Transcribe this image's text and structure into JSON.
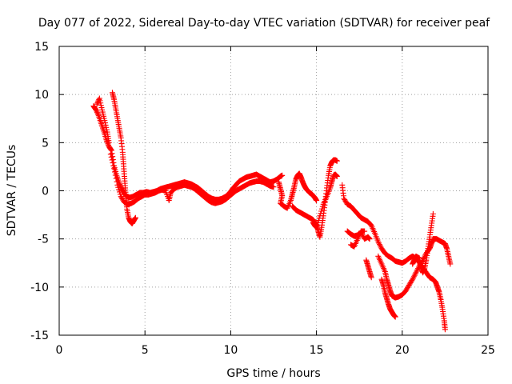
{
  "chart_data": {
    "type": "scatter",
    "title": "Day 077 of 2022, Sidereal Day-to-day VTEC variation (SDTVAR) for receiver peaf",
    "xlabel": "GPS time / hours",
    "ylabel": "SDTVAR / TECUs",
    "xlim": [
      0,
      25
    ],
    "ylim": [
      -15,
      15
    ],
    "xticks": [
      0,
      5,
      10,
      15,
      20,
      25
    ],
    "yticks": [
      -15,
      -10,
      -5,
      0,
      5,
      10,
      15
    ],
    "grid": true,
    "marker": "+",
    "color": "#ff0000",
    "series": [
      {
        "name": "track-1",
        "points": [
          [
            2.0,
            8.8
          ],
          [
            2.15,
            8.4
          ],
          [
            2.3,
            7.8
          ],
          [
            2.45,
            7.0
          ],
          [
            2.6,
            6.2
          ],
          [
            2.75,
            5.3
          ],
          [
            2.9,
            4.6
          ],
          [
            3.05,
            4.2
          ],
          [
            3.2,
            2.6
          ],
          [
            3.35,
            1.6
          ],
          [
            3.5,
            0.8
          ],
          [
            3.65,
            0.2
          ],
          [
            3.8,
            -0.3
          ],
          [
            3.95,
            -0.6
          ],
          [
            4.1,
            -0.7
          ],
          [
            4.3,
            -0.6
          ],
          [
            4.5,
            -0.4
          ],
          [
            4.7,
            -0.2
          ],
          [
            4.9,
            -0.2
          ],
          [
            5.1,
            -0.1
          ],
          [
            5.3,
            -0.2
          ],
          [
            5.5,
            -0.1
          ],
          [
            5.7,
            0.0
          ],
          [
            5.9,
            0.2
          ],
          [
            6.1,
            0.3
          ],
          [
            6.3,
            0.4
          ],
          [
            6.5,
            0.5
          ],
          [
            6.7,
            0.6
          ],
          [
            6.9,
            0.7
          ],
          [
            7.1,
            0.8
          ],
          [
            7.3,
            0.9
          ],
          [
            7.5,
            0.8
          ],
          [
            7.7,
            0.7
          ],
          [
            7.9,
            0.5
          ],
          [
            8.1,
            0.3
          ],
          [
            8.3,
            0.0
          ],
          [
            8.5,
            -0.3
          ],
          [
            8.7,
            -0.6
          ],
          [
            8.9,
            -0.8
          ],
          [
            9.1,
            -0.9
          ],
          [
            9.3,
            -0.9
          ],
          [
            9.5,
            -0.8
          ],
          [
            9.7,
            -0.6
          ],
          [
            9.9,
            -0.3
          ],
          [
            10.1,
            0.2
          ],
          [
            10.3,
            0.6
          ],
          [
            10.5,
            1.0
          ],
          [
            10.7,
            1.2
          ],
          [
            10.9,
            1.4
          ],
          [
            11.1,
            1.5
          ],
          [
            11.3,
            1.6
          ],
          [
            11.5,
            1.7
          ],
          [
            11.7,
            1.5
          ],
          [
            11.9,
            1.3
          ],
          [
            12.1,
            1.1
          ],
          [
            12.3,
            0.9
          ],
          [
            12.5,
            1.0
          ],
          [
            12.7,
            1.2
          ],
          [
            12.9,
            1.5
          ],
          [
            13.0,
            1.6
          ]
        ]
      },
      {
        "name": "track-2",
        "points": [
          [
            2.2,
            9.0
          ],
          [
            2.35,
            9.6
          ],
          [
            2.5,
            8.4
          ],
          [
            2.65,
            7.3
          ],
          [
            2.8,
            6.1
          ],
          [
            2.9,
            5.0
          ]
        ]
      },
      {
        "name": "track-3",
        "points": [
          [
            3.1,
            10.2
          ],
          [
            3.2,
            9.5
          ],
          [
            3.3,
            8.5
          ],
          [
            3.4,
            7.5
          ],
          [
            3.5,
            6.5
          ],
          [
            3.6,
            5.5
          ],
          [
            3.7,
            4.0
          ],
          [
            3.75,
            2.8
          ],
          [
            3.8,
            1.5
          ],
          [
            3.85,
            0.3
          ],
          [
            3.9,
            -0.8
          ],
          [
            3.95,
            -1.9
          ],
          [
            4.05,
            -2.8
          ],
          [
            4.15,
            -3.2
          ],
          [
            4.25,
            -3.4
          ],
          [
            4.35,
            -3.1
          ],
          [
            4.45,
            -2.8
          ]
        ]
      },
      {
        "name": "track-4",
        "points": [
          [
            3.0,
            3.8
          ],
          [
            3.2,
            2.3
          ],
          [
            3.4,
            0.6
          ],
          [
            3.6,
            -0.6
          ],
          [
            3.8,
            -1.2
          ],
          [
            4.0,
            -1.4
          ],
          [
            4.2,
            -1.3
          ],
          [
            4.4,
            -1.1
          ],
          [
            4.6,
            -0.8
          ],
          [
            4.8,
            -0.6
          ],
          [
            5.0,
            -0.4
          ],
          [
            5.2,
            -0.4
          ],
          [
            5.4,
            -0.3
          ],
          [
            5.6,
            -0.2
          ],
          [
            5.8,
            0.0
          ],
          [
            6.0,
            0.1
          ],
          [
            6.2,
            0.0
          ],
          [
            6.4,
            -1.0
          ],
          [
            6.5,
            -0.2
          ],
          [
            6.7,
            0.2
          ],
          [
            6.9,
            0.4
          ],
          [
            7.1,
            0.5
          ],
          [
            7.3,
            0.6
          ],
          [
            7.5,
            0.5
          ],
          [
            7.7,
            0.4
          ],
          [
            7.9,
            0.2
          ],
          [
            8.1,
            -0.1
          ],
          [
            8.3,
            -0.4
          ],
          [
            8.5,
            -0.7
          ],
          [
            8.7,
            -1.0
          ],
          [
            8.9,
            -1.2
          ],
          [
            9.1,
            -1.3
          ],
          [
            9.3,
            -1.2
          ],
          [
            9.5,
            -1.1
          ],
          [
            9.7,
            -0.9
          ],
          [
            9.9,
            -0.6
          ],
          [
            10.1,
            -0.3
          ],
          [
            10.3,
            0.0
          ],
          [
            10.5,
            0.2
          ],
          [
            10.7,
            0.4
          ],
          [
            10.9,
            0.6
          ],
          [
            11.1,
            0.8
          ],
          [
            11.3,
            0.9
          ],
          [
            11.5,
            1.0
          ],
          [
            11.7,
            1.0
          ],
          [
            11.9,
            0.9
          ],
          [
            12.1,
            0.7
          ],
          [
            12.3,
            0.5
          ],
          [
            12.5,
            0.4
          ]
        ]
      },
      {
        "name": "track-5",
        "points": [
          [
            12.8,
            0.9
          ],
          [
            12.9,
            0.2
          ],
          [
            13.0,
            -0.5
          ],
          [
            12.9,
            -1.3
          ],
          [
            13.1,
            -1.6
          ],
          [
            13.3,
            -1.8
          ],
          [
            13.5,
            -1.0
          ],
          [
            13.6,
            -0.3
          ],
          [
            13.7,
            0.4
          ],
          [
            13.8,
            1.2
          ],
          [
            13.9,
            1.6
          ],
          [
            14.0,
            1.8
          ],
          [
            14.1,
            1.4
          ],
          [
            14.2,
            0.9
          ],
          [
            14.3,
            0.5
          ],
          [
            14.4,
            0.2
          ],
          [
            14.5,
            0.0
          ],
          [
            14.6,
            -0.2
          ],
          [
            14.7,
            -0.3
          ],
          [
            14.8,
            -0.5
          ],
          [
            14.9,
            -0.7
          ],
          [
            15.0,
            -1.0
          ]
        ]
      },
      {
        "name": "track-6",
        "points": [
          [
            13.6,
            -1.6
          ],
          [
            13.8,
            -2.0
          ],
          [
            14.0,
            -2.2
          ],
          [
            14.2,
            -2.4
          ],
          [
            14.4,
            -2.6
          ],
          [
            14.6,
            -2.8
          ],
          [
            14.8,
            -3.0
          ],
          [
            15.0,
            -3.5
          ],
          [
            15.1,
            -4.2
          ],
          [
            15.2,
            -4.8
          ],
          [
            15.3,
            -3.8
          ],
          [
            15.4,
            -2.6
          ],
          [
            15.5,
            -1.2
          ],
          [
            15.6,
            0.3
          ],
          [
            15.7,
            1.6
          ],
          [
            15.8,
            2.6
          ],
          [
            15.9,
            3.0
          ],
          [
            16.0,
            3.2
          ],
          [
            16.1,
            3.2
          ],
          [
            16.2,
            3.1
          ]
        ]
      },
      {
        "name": "track-7",
        "points": [
          [
            14.8,
            -3.3
          ],
          [
            14.9,
            -3.6
          ],
          [
            15.0,
            -3.8
          ],
          [
            15.2,
            -2.6
          ],
          [
            15.4,
            -1.4
          ],
          [
            15.6,
            -0.6
          ],
          [
            15.8,
            0.3
          ],
          [
            15.9,
            1.0
          ],
          [
            16.0,
            1.6
          ],
          [
            16.1,
            1.7
          ],
          [
            16.2,
            1.5
          ]
        ]
      },
      {
        "name": "track-8",
        "points": [
          [
            16.5,
            0.6
          ],
          [
            16.6,
            -0.8
          ],
          [
            16.8,
            -1.4
          ],
          [
            17.0,
            -1.6
          ],
          [
            17.2,
            -2.0
          ],
          [
            17.4,
            -2.4
          ],
          [
            17.6,
            -2.8
          ],
          [
            17.8,
            -3.0
          ],
          [
            18.0,
            -3.2
          ],
          [
            18.2,
            -3.6
          ],
          [
            18.4,
            -4.4
          ],
          [
            18.6,
            -5.3
          ],
          [
            18.8,
            -6.0
          ],
          [
            19.0,
            -6.5
          ],
          [
            19.2,
            -6.8
          ],
          [
            19.4,
            -7.0
          ],
          [
            19.6,
            -7.3
          ],
          [
            19.8,
            -7.4
          ],
          [
            20.0,
            -7.5
          ],
          [
            20.2,
            -7.3
          ],
          [
            20.4,
            -7.0
          ],
          [
            20.6,
            -6.8
          ],
          [
            20.8,
            -7.0
          ],
          [
            21.0,
            -7.5
          ],
          [
            21.2,
            -8.0
          ],
          [
            21.4,
            -8.5
          ],
          [
            21.6,
            -9.0
          ],
          [
            21.8,
            -9.2
          ],
          [
            21.95,
            -9.5
          ],
          [
            22.05,
            -10.0
          ],
          [
            22.15,
            -10.5
          ],
          [
            22.25,
            -11.3
          ],
          [
            22.35,
            -12.3
          ],
          [
            22.45,
            -13.5
          ],
          [
            22.5,
            -14.4
          ]
        ]
      },
      {
        "name": "track-9",
        "points": [
          [
            16.8,
            -4.2
          ],
          [
            17.0,
            -4.5
          ],
          [
            17.2,
            -4.7
          ],
          [
            17.4,
            -4.6
          ],
          [
            17.6,
            -4.3
          ],
          [
            17.8,
            -5.0
          ],
          [
            18.0,
            -4.8
          ],
          [
            18.1,
            -5.0
          ]
        ]
      },
      {
        "name": "track-10",
        "points": [
          [
            17.0,
            -5.6
          ],
          [
            17.2,
            -5.8
          ],
          [
            17.4,
            -5.0
          ],
          [
            17.6,
            -4.2
          ],
          [
            17.8,
            -4.2
          ]
        ]
      },
      {
        "name": "track-11",
        "points": [
          [
            17.9,
            -7.2
          ],
          [
            18.0,
            -7.8
          ],
          [
            18.1,
            -8.4
          ],
          [
            18.2,
            -9.0
          ]
        ]
      },
      {
        "name": "track-12",
        "points": [
          [
            18.6,
            -6.8
          ],
          [
            18.8,
            -7.6
          ],
          [
            19.0,
            -8.4
          ],
          [
            19.1,
            -9.2
          ],
          [
            19.2,
            -9.8
          ],
          [
            19.3,
            -10.4
          ],
          [
            19.4,
            -10.9
          ],
          [
            19.5,
            -11.0
          ],
          [
            19.6,
            -11.1
          ],
          [
            19.8,
            -11.0
          ],
          [
            20.0,
            -10.8
          ],
          [
            20.2,
            -10.4
          ],
          [
            20.4,
            -9.8
          ],
          [
            20.6,
            -9.2
          ],
          [
            20.8,
            -8.5
          ],
          [
            21.0,
            -7.8
          ],
          [
            21.2,
            -7.2
          ],
          [
            21.4,
            -6.5
          ],
          [
            21.6,
            -6.0
          ],
          [
            21.7,
            -5.5
          ],
          [
            21.8,
            -5.0
          ],
          [
            22.0,
            -5.0
          ],
          [
            22.2,
            -5.2
          ],
          [
            22.4,
            -5.4
          ],
          [
            22.5,
            -5.5
          ],
          [
            22.6,
            -6.0
          ],
          [
            22.7,
            -6.8
          ],
          [
            22.8,
            -7.6
          ]
        ]
      },
      {
        "name": "track-13",
        "points": [
          [
            18.8,
            -9.2
          ],
          [
            18.9,
            -9.8
          ],
          [
            19.0,
            -10.6
          ],
          [
            19.1,
            -11.2
          ],
          [
            19.2,
            -11.8
          ],
          [
            19.3,
            -12.3
          ],
          [
            19.4,
            -12.6
          ],
          [
            19.5,
            -12.9
          ],
          [
            19.6,
            -13.1
          ]
        ]
      },
      {
        "name": "track-14",
        "points": [
          [
            20.6,
            -7.6
          ],
          [
            20.7,
            -7.2
          ],
          [
            20.8,
            -6.8
          ],
          [
            21.0,
            -7.0
          ],
          [
            21.1,
            -8.0
          ],
          [
            21.2,
            -8.5
          ],
          [
            21.3,
            -8.1
          ],
          [
            21.4,
            -7.2
          ],
          [
            21.5,
            -6.0
          ],
          [
            21.6,
            -4.8
          ],
          [
            21.7,
            -3.6
          ],
          [
            21.8,
            -2.4
          ]
        ]
      }
    ]
  }
}
